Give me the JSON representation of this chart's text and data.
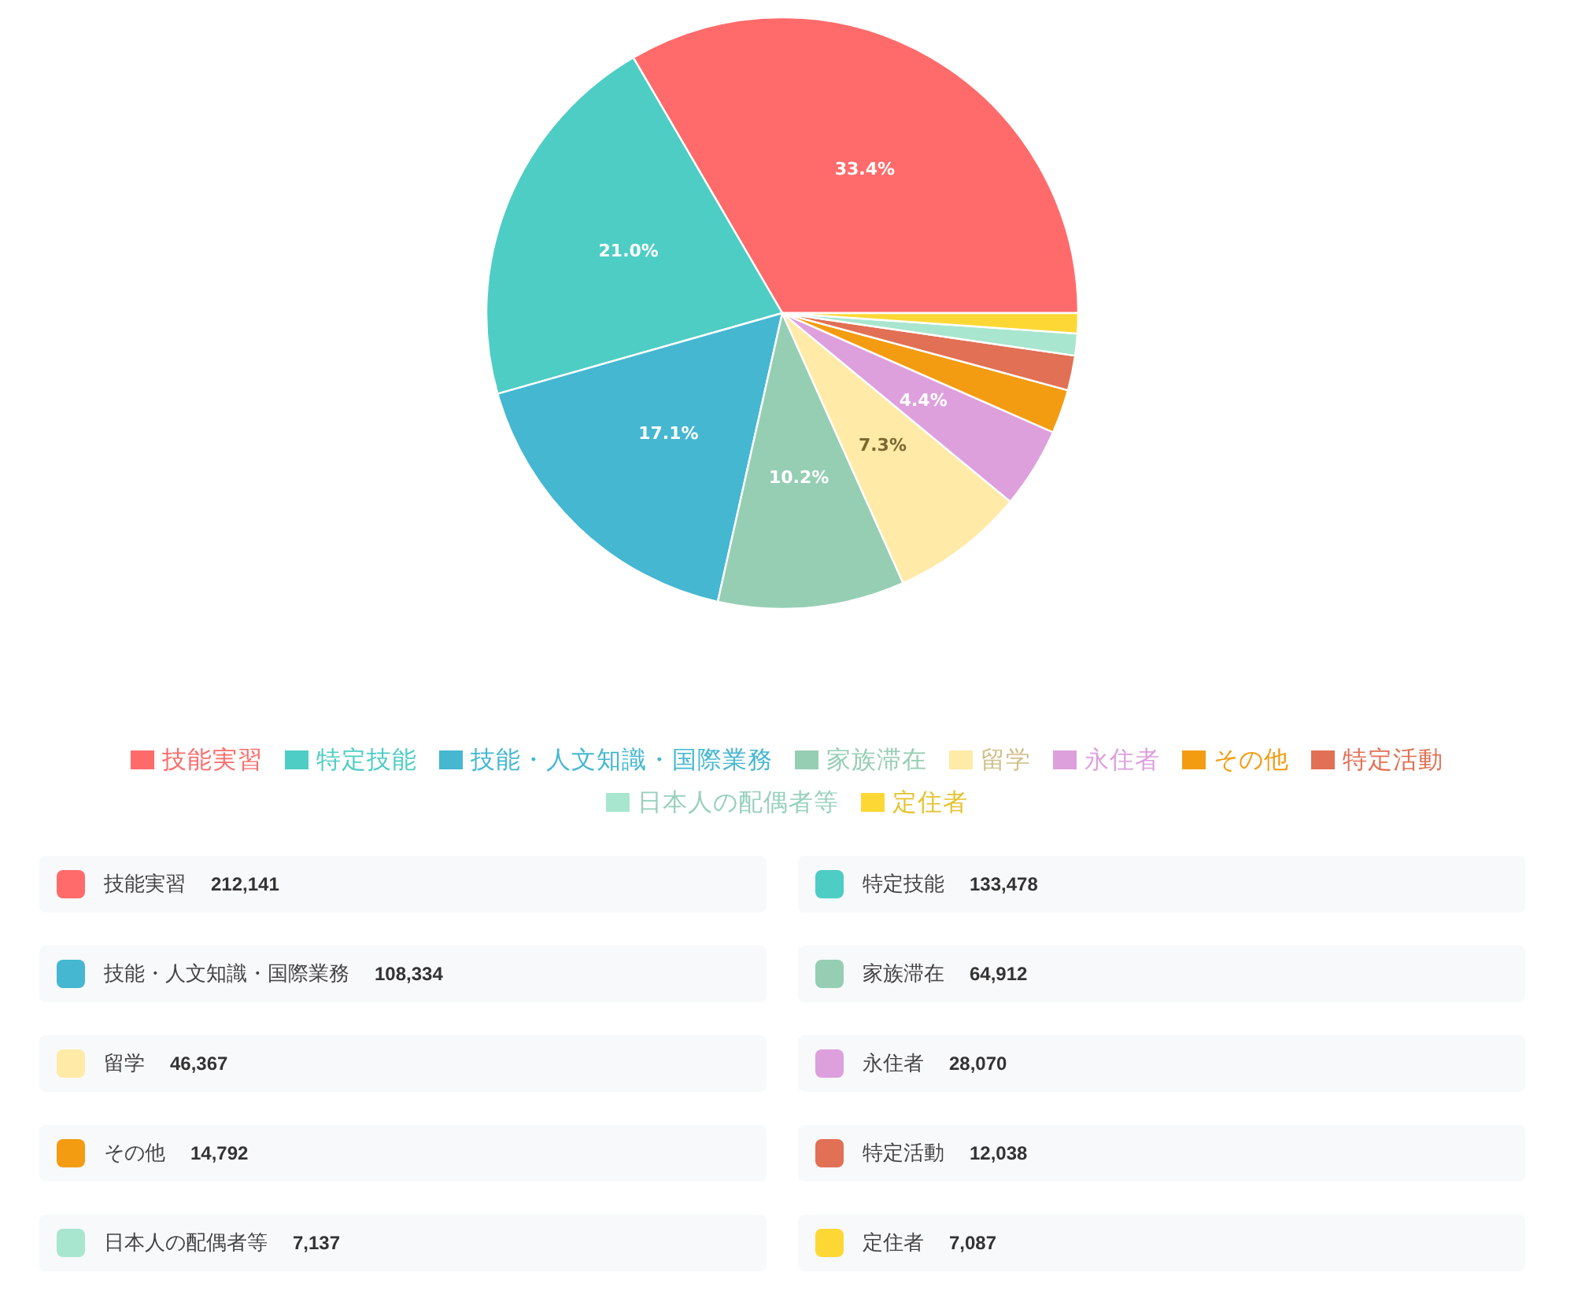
{
  "chart_data": [
    {
      "type": "pie",
      "categories": [
        "技能実習",
        "特定技能",
        "技能・人文知識・国際業務",
        "家族滞在",
        "留学",
        "永住者",
        "その他",
        "特定活動",
        "日本人の配偶者等",
        "定住者"
      ],
      "values": [
        33.4,
        21.0,
        17.1,
        10.2,
        7.3,
        4.4,
        2.4,
        1.9,
        1.2,
        1.1
      ],
      "colors": [
        "#ff6b6b",
        "#4ecdc4",
        "#45b7d1",
        "#96ceb4",
        "#ffeaa7",
        "#dda0dd",
        "#f39c12",
        "#e17055",
        "#a8e6cf",
        "#fdd835"
      ],
      "value_labels": [
        "33.4%",
        "21.0%",
        "17.1%",
        "10.2%",
        "7.3%",
        "4.4%",
        null,
        null,
        null,
        null
      ],
      "legend": "bottom"
    },
    {
      "type": "other",
      "categories": [
        "技能実習",
        "特定技能",
        "技能・人文知識・国際業務",
        "家族滞在",
        "留学",
        "永住者",
        "その他",
        "特定活動",
        "日本人の配偶者等",
        "定住者"
      ],
      "values": [
        212141,
        133478,
        108334,
        64912,
        46367,
        28070,
        14792,
        12038,
        7137,
        7087
      ],
      "value_labels": [
        "212,141",
        "133,478",
        "108,334",
        "64,912",
        "46,367",
        "28,070",
        "14,792",
        "12,038",
        "7,137",
        "7,087"
      ],
      "colors": [
        "#ff6b6b",
        "#4ecdc4",
        "#45b7d1",
        "#96ceb4",
        "#ffeaa7",
        "#dda0dd",
        "#f39c12",
        "#e17055",
        "#a8e6cf",
        "#fdd835"
      ]
    }
  ]
}
